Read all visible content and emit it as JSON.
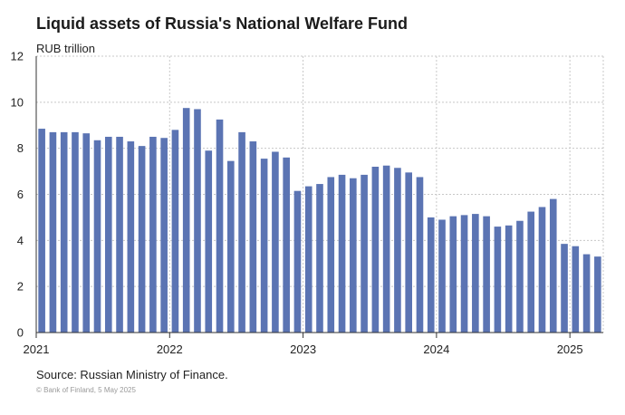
{
  "chart_data": {
    "type": "bar",
    "title": "Liquid assets of Russia's National Welfare Fund",
    "unit": "RUB trillion",
    "source": "Source: Russian Ministry of Finance.",
    "copyright": "© Bank of Finland, 5 May 2025",
    "ylim": [
      0,
      12
    ],
    "yticks": [
      0,
      2,
      4,
      6,
      8,
      10,
      12
    ],
    "xticks": [
      "2021",
      "2022",
      "2023",
      "2024",
      "2025"
    ],
    "grid": true,
    "bar_color": "#5b74b3",
    "grid_color": "#c8c8c8",
    "categories": [
      "2021-01",
      "2021-02",
      "2021-03",
      "2021-04",
      "2021-05",
      "2021-06",
      "2021-07",
      "2021-08",
      "2021-09",
      "2021-10",
      "2021-11",
      "2021-12",
      "2022-01",
      "2022-02",
      "2022-03",
      "2022-04",
      "2022-05",
      "2022-06",
      "2022-07",
      "2022-08",
      "2022-09",
      "2022-10",
      "2022-11",
      "2022-12",
      "2023-01",
      "2023-02",
      "2023-03",
      "2023-04",
      "2023-05",
      "2023-06",
      "2023-07",
      "2023-08",
      "2023-09",
      "2023-10",
      "2023-11",
      "2023-12",
      "2024-01",
      "2024-02",
      "2024-03",
      "2024-04",
      "2024-05",
      "2024-06",
      "2024-07",
      "2024-08",
      "2024-09",
      "2024-10",
      "2024-11",
      "2024-12",
      "2025-01",
      "2025-02",
      "2025-03"
    ],
    "values": [
      8.85,
      8.7,
      8.7,
      8.7,
      8.65,
      8.35,
      8.5,
      8.5,
      8.3,
      8.1,
      8.5,
      8.45,
      8.8,
      9.75,
      9.7,
      7.9,
      9.25,
      7.45,
      8.7,
      8.3,
      7.55,
      7.85,
      7.6,
      6.15,
      6.35,
      6.45,
      6.75,
      6.85,
      6.7,
      6.85,
      7.2,
      7.25,
      7.15,
      6.95,
      6.75,
      5.0,
      4.9,
      5.05,
      5.1,
      5.15,
      5.05,
      4.6,
      4.65,
      4.85,
      5.25,
      5.45,
      5.8,
      3.85,
      3.75,
      3.4,
      3.3
    ]
  }
}
